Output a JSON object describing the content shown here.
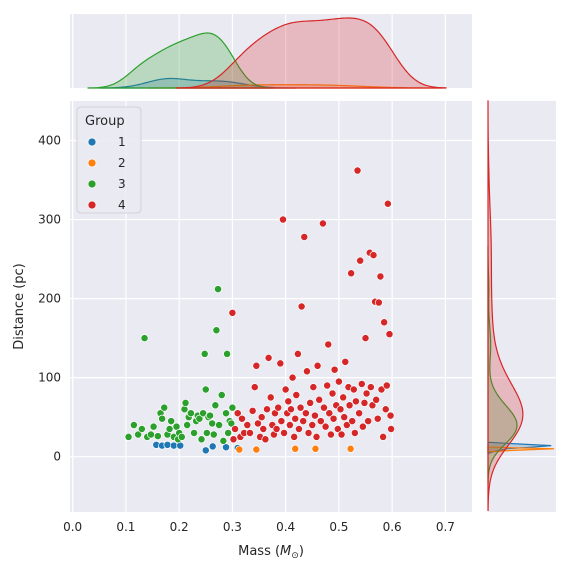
{
  "chart_data": {
    "type": "scatter",
    "xlabel": "Mass (",
    "xlabel_symbol": "M",
    "xlabel_subscript": "⊙",
    "xlabel_tail": ")",
    "ylabel": "Distance (pc)",
    "xlim": [
      -0.005,
      0.75
    ],
    "ylim": [
      -70,
      450
    ],
    "xticks": [
      0.0,
      0.1,
      0.2,
      0.3,
      0.4,
      0.5,
      0.6,
      0.7
    ],
    "xtick_labels": [
      "0.0",
      "0.1",
      "0.2",
      "0.3",
      "0.4",
      "0.5",
      "0.6",
      "0.7"
    ],
    "yticks": [
      0,
      100,
      200,
      300,
      400
    ],
    "ytick_labels": [
      "0",
      "100",
      "200",
      "300",
      "400"
    ],
    "grid": true,
    "legend": {
      "title": "Group",
      "placement": "top-left"
    },
    "marginals": {
      "top": "kde-by-group",
      "right": "kde-by-group"
    },
    "series": [
      {
        "name": "1",
        "color": "#1f77b4",
        "points": [
          [
            0.157,
            15
          ],
          [
            0.168,
            14
          ],
          [
            0.178,
            15
          ],
          [
            0.19,
            14
          ],
          [
            0.202,
            14
          ],
          [
            0.25,
            8
          ],
          [
            0.263,
            13
          ],
          [
            0.288,
            12
          ],
          [
            0.31,
            11
          ]
        ]
      },
      {
        "name": "2",
        "color": "#ff7f0e",
        "points": [
          [
            0.313,
            9
          ],
          [
            0.345,
            9
          ],
          [
            0.418,
            10
          ],
          [
            0.456,
            10
          ],
          [
            0.522,
            10
          ]
        ]
      },
      {
        "name": "3",
        "color": "#2ca02c",
        "points": [
          [
            0.105,
            25
          ],
          [
            0.115,
            40
          ],
          [
            0.123,
            28
          ],
          [
            0.13,
            35
          ],
          [
            0.135,
            150
          ],
          [
            0.14,
            25
          ],
          [
            0.147,
            28
          ],
          [
            0.152,
            38
          ],
          [
            0.16,
            26
          ],
          [
            0.165,
            55
          ],
          [
            0.168,
            48
          ],
          [
            0.172,
            62
          ],
          [
            0.178,
            28
          ],
          [
            0.182,
            35
          ],
          [
            0.185,
            45
          ],
          [
            0.19,
            25
          ],
          [
            0.195,
            38
          ],
          [
            0.198,
            22
          ],
          [
            0.2,
            30
          ],
          [
            0.205,
            25
          ],
          [
            0.21,
            60
          ],
          [
            0.212,
            68
          ],
          [
            0.215,
            40
          ],
          [
            0.218,
            50
          ],
          [
            0.222,
            55
          ],
          [
            0.228,
            30
          ],
          [
            0.232,
            45
          ],
          [
            0.235,
            52
          ],
          [
            0.238,
            48
          ],
          [
            0.242,
            22
          ],
          [
            0.245,
            55
          ],
          [
            0.248,
            130
          ],
          [
            0.25,
            85
          ],
          [
            0.252,
            30
          ],
          [
            0.255,
            50
          ],
          [
            0.258,
            52
          ],
          [
            0.262,
            42
          ],
          [
            0.265,
            28
          ],
          [
            0.268,
            65
          ],
          [
            0.27,
            160
          ],
          [
            0.273,
            212
          ],
          [
            0.275,
            40
          ],
          [
            0.28,
            78
          ],
          [
            0.283,
            20
          ],
          [
            0.288,
            55
          ],
          [
            0.29,
            130
          ],
          [
            0.292,
            30
          ],
          [
            0.295,
            45
          ],
          [
            0.298,
            42
          ],
          [
            0.3,
            62
          ]
        ]
      },
      {
        "name": "4",
        "color": "#d62728",
        "points": [
          [
            0.3,
            182
          ],
          [
            0.302,
            22
          ],
          [
            0.305,
            35
          ],
          [
            0.31,
            55
          ],
          [
            0.315,
            25
          ],
          [
            0.318,
            48
          ],
          [
            0.322,
            30
          ],
          [
            0.328,
            40
          ],
          [
            0.333,
            30
          ],
          [
            0.338,
            58
          ],
          [
            0.342,
            88
          ],
          [
            0.345,
            115
          ],
          [
            0.348,
            42
          ],
          [
            0.352,
            25
          ],
          [
            0.355,
            50
          ],
          [
            0.358,
            35
          ],
          [
            0.362,
            22
          ],
          [
            0.365,
            60
          ],
          [
            0.368,
            125
          ],
          [
            0.372,
            75
          ],
          [
            0.375,
            40
          ],
          [
            0.378,
            28
          ],
          [
            0.38,
            55
          ],
          [
            0.383,
            35
          ],
          [
            0.386,
            62
          ],
          [
            0.39,
            118
          ],
          [
            0.392,
            45
          ],
          [
            0.395,
            300
          ],
          [
            0.397,
            30
          ],
          [
            0.4,
            85
          ],
          [
            0.403,
            55
          ],
          [
            0.405,
            70
          ],
          [
            0.408,
            40
          ],
          [
            0.41,
            60
          ],
          [
            0.413,
            100
          ],
          [
            0.416,
            25
          ],
          [
            0.418,
            48
          ],
          [
            0.42,
            78
          ],
          [
            0.423,
            130
          ],
          [
            0.425,
            35
          ],
          [
            0.428,
            62
          ],
          [
            0.43,
            190
          ],
          [
            0.433,
            45
          ],
          [
            0.435,
            278
          ],
          [
            0.438,
            55
          ],
          [
            0.44,
            108
          ],
          [
            0.443,
            30
          ],
          [
            0.446,
            68
          ],
          [
            0.45,
            40
          ],
          [
            0.452,
            88
          ],
          [
            0.455,
            52
          ],
          [
            0.458,
            25
          ],
          [
            0.46,
            115
          ],
          [
            0.463,
            72
          ],
          [
            0.466,
            45
          ],
          [
            0.47,
            295
          ],
          [
            0.472,
            62
          ],
          [
            0.475,
            38
          ],
          [
            0.478,
            90
          ],
          [
            0.48,
            142
          ],
          [
            0.482,
            55
          ],
          [
            0.485,
            28
          ],
          [
            0.488,
            80
          ],
          [
            0.49,
            48
          ],
          [
            0.492,
            110
          ],
          [
            0.495,
            65
          ],
          [
            0.498,
            35
          ],
          [
            0.5,
            95
          ],
          [
            0.503,
            60
          ],
          [
            0.505,
            28
          ],
          [
            0.508,
            75
          ],
          [
            0.51,
            50
          ],
          [
            0.512,
            120
          ],
          [
            0.515,
            40
          ],
          [
            0.518,
            88
          ],
          [
            0.52,
            65
          ],
          [
            0.523,
            232
          ],
          [
            0.525,
            45
          ],
          [
            0.528,
            85
          ],
          [
            0.53,
            30
          ],
          [
            0.532,
            70
          ],
          [
            0.535,
            362
          ],
          [
            0.538,
            55
          ],
          [
            0.54,
            248
          ],
          [
            0.543,
            92
          ],
          [
            0.545,
            38
          ],
          [
            0.548,
            68
          ],
          [
            0.55,
            150
          ],
          [
            0.552,
            80
          ],
          [
            0.555,
            45
          ],
          [
            0.558,
            258
          ],
          [
            0.56,
            88
          ],
          [
            0.563,
            65
          ],
          [
            0.565,
            255
          ],
          [
            0.568,
            196
          ],
          [
            0.57,
            72
          ],
          [
            0.573,
            48
          ],
          [
            0.575,
            195
          ],
          [
            0.578,
            228
          ],
          [
            0.58,
            85
          ],
          [
            0.583,
            25
          ],
          [
            0.585,
            170
          ],
          [
            0.588,
            60
          ],
          [
            0.59,
            90
          ],
          [
            0.592,
            320
          ],
          [
            0.595,
            155
          ],
          [
            0.597,
            52
          ],
          [
            0.598,
            35
          ]
        ]
      }
    ]
  }
}
